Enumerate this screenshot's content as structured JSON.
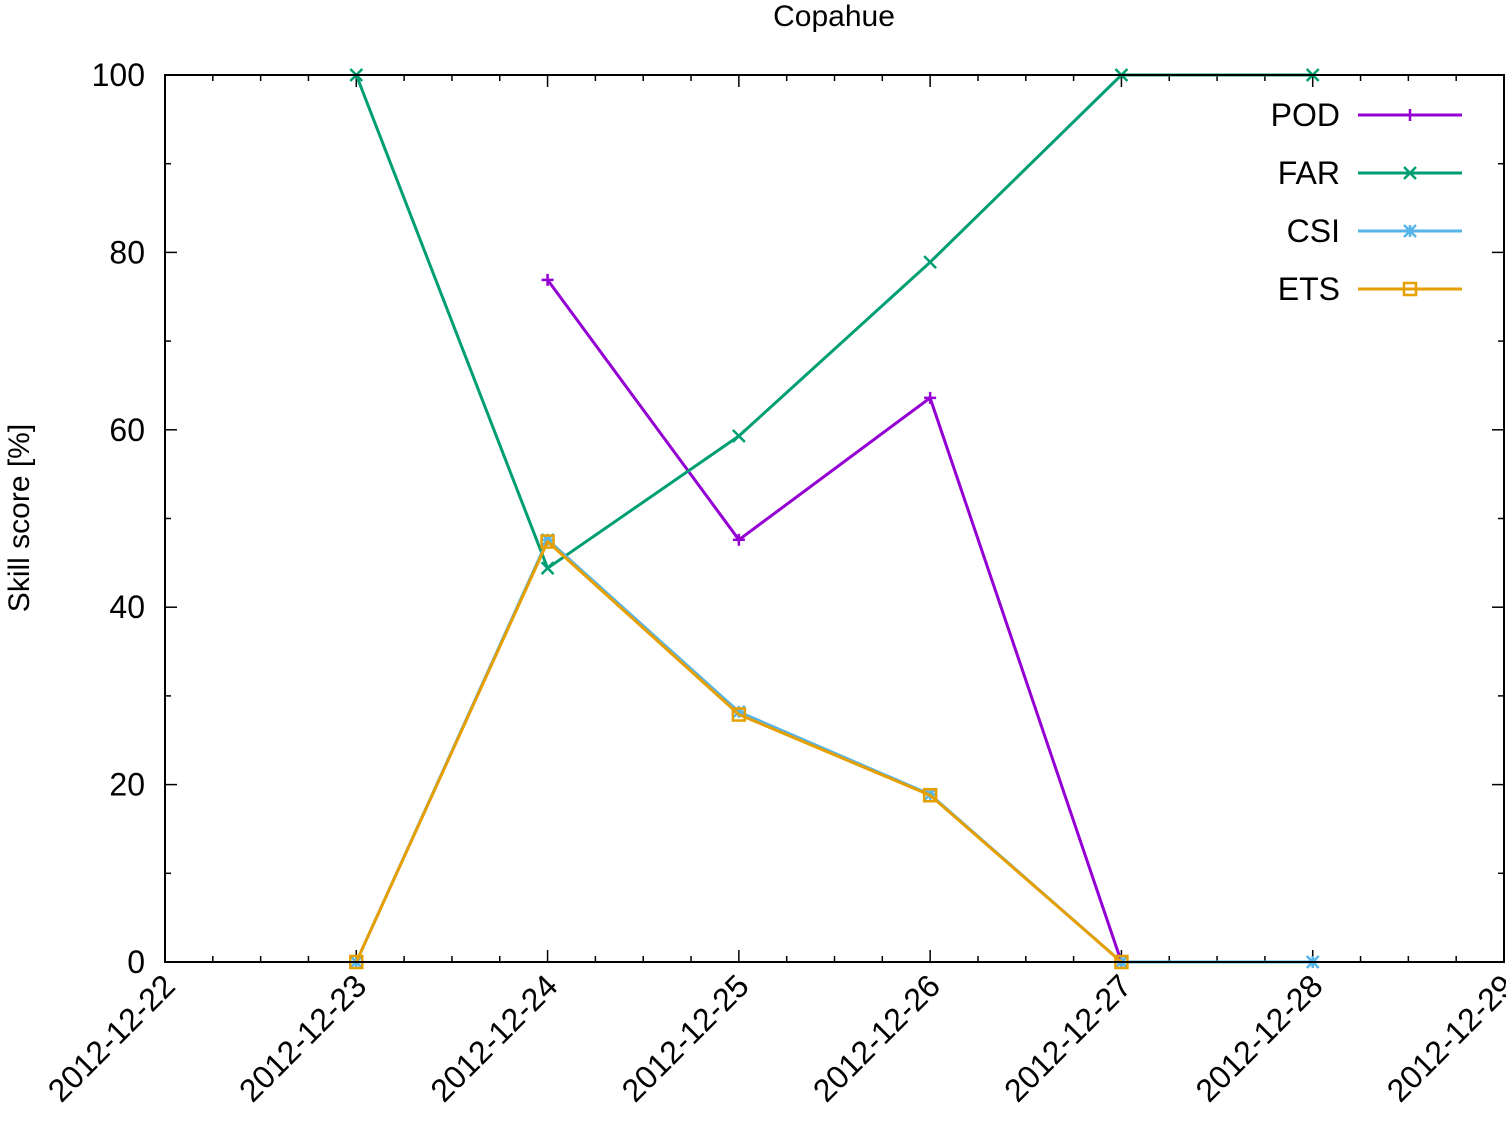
{
  "chart_data": {
    "type": "line",
    "title": "Copahue",
    "xlabel": "",
    "ylabel": "Skill score [%]",
    "x": [
      "2012-12-22",
      "2012-12-23",
      "2012-12-24",
      "2012-12-25",
      "2012-12-26",
      "2012-12-27",
      "2012-12-28",
      "2012-12-29"
    ],
    "xlim": [
      "2012-12-22",
      "2012-12-29"
    ],
    "ylim": [
      0,
      100
    ],
    "yticks": [
      0,
      20,
      40,
      60,
      80,
      100
    ],
    "grid": false,
    "legend_position": "top-right",
    "series": [
      {
        "name": "POD",
        "color": "#9400d3",
        "marker": "plus",
        "points": [
          [
            "2012-12-24",
            76.9
          ],
          [
            "2012-12-25",
            47.6
          ],
          [
            "2012-12-26",
            63.6
          ],
          [
            "2012-12-27",
            0
          ]
        ]
      },
      {
        "name": "FAR",
        "color": "#009e73",
        "marker": "cross",
        "points": [
          [
            "2012-12-23",
            100
          ],
          [
            "2012-12-24",
            44.4
          ],
          [
            "2012-12-25",
            59.3
          ],
          [
            "2012-12-26",
            78.9
          ],
          [
            "2012-12-27",
            100
          ],
          [
            "2012-12-28",
            100
          ]
        ]
      },
      {
        "name": "CSI",
        "color": "#56b4e9",
        "marker": "star",
        "points": [
          [
            "2012-12-23",
            0
          ],
          [
            "2012-12-24",
            47.6
          ],
          [
            "2012-12-25",
            28.2
          ],
          [
            "2012-12-26",
            18.9
          ],
          [
            "2012-12-27",
            0
          ],
          [
            "2012-12-28",
            0
          ]
        ]
      },
      {
        "name": "ETS",
        "color": "#e69f00",
        "marker": "square",
        "points": [
          [
            "2012-12-23",
            0
          ],
          [
            "2012-12-24",
            47.4
          ],
          [
            "2012-12-25",
            27.9
          ],
          [
            "2012-12-26",
            18.8
          ],
          [
            "2012-12-27",
            0
          ]
        ]
      }
    ]
  }
}
